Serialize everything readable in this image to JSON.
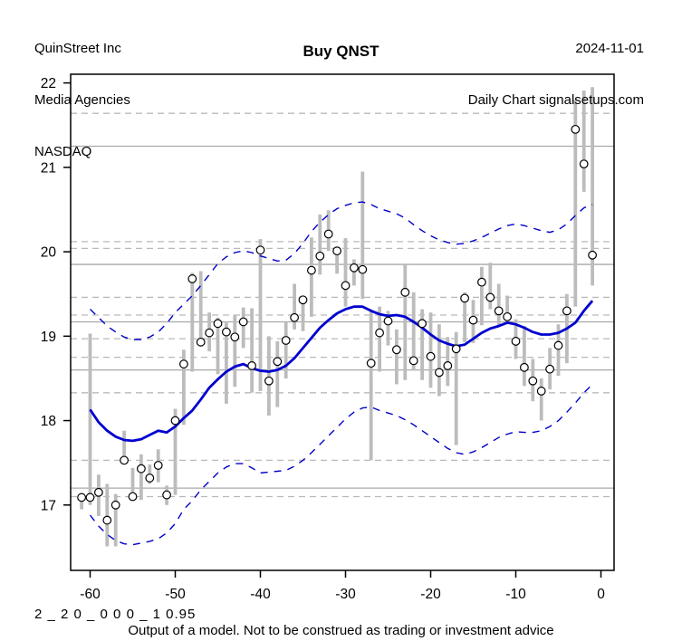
{
  "header": {
    "company": "QuinStreet Inc",
    "industry": "Media Agencies",
    "exchange": "NASDAQ",
    "date": "2024-11-01",
    "source": "Daily Chart signalsetups.com"
  },
  "title": "Buy QNST",
  "footer": {
    "params": "2 _ 2 0 _ 0 0 0 _ 1 0.95",
    "disclaimer": "Output of a model. Not to be construed as trading or investment advice"
  },
  "chart_data": {
    "type": "bar",
    "subtype": "daily price range bars with close markers, moving average and envelope bands",
    "title": "Buy QNST",
    "xlabel": "",
    "ylabel": "",
    "x_ticks": [
      -60,
      -50,
      -40,
      -30,
      -20,
      -10,
      0
    ],
    "y_ticks": [
      17,
      18,
      19,
      20,
      21,
      22
    ],
    "xlim": [
      -62.3,
      1.5
    ],
    "ylim": [
      16.23,
      22.1
    ],
    "grid": "horizontal support/resistance lines",
    "levels_solid": [
      21.25,
      19.85,
      19.17,
      18.6,
      17.2
    ],
    "levels_dashed": [
      21.64,
      20.12,
      20.04,
      19.46,
      19.25,
      18.97,
      18.75,
      18.33,
      17.53,
      17.1
    ],
    "days": [
      -61,
      -60,
      -59,
      -58,
      -57,
      -56,
      -55,
      -54,
      -53,
      -52,
      -51,
      -50,
      -49,
      -48,
      -47,
      -46,
      -45,
      -44,
      -43,
      -42,
      -41,
      -40,
      -39,
      -38,
      -37,
      -36,
      -35,
      -34,
      -33,
      -32,
      -31,
      -30,
      -29,
      -28,
      -27,
      -26,
      -25,
      -24,
      -23,
      -22,
      -21,
      -20,
      -19,
      -18,
      -17,
      -16,
      -15,
      -14,
      -13,
      -12,
      -11,
      -10,
      -9,
      -8,
      -7,
      -6,
      -5,
      -4,
      -3,
      -2,
      -1
    ],
    "high": [
      17.13,
      19.03,
      17.36,
      17.25,
      17.13,
      17.88,
      17.44,
      17.6,
      17.48,
      17.66,
      17.23,
      18.14,
      18.84,
      19.75,
      19.77,
      19.28,
      19.22,
      19.17,
      19.25,
      19.34,
      19.33,
      20.15,
      19.0,
      18.94,
      19.17,
      19.62,
      19.48,
      20.17,
      20.44,
      20.49,
      20.05,
      20.16,
      19.91,
      20.95,
      19.3,
      19.35,
      19.3,
      19.08,
      19.86,
      19.52,
      19.32,
      19.28,
      19.14,
      18.99,
      19.05,
      19.52,
      19.43,
      19.82,
      19.87,
      19.62,
      19.48,
      19.2,
      19.12,
      18.73,
      18.5,
      18.86,
      19.14,
      19.5,
      21.8,
      21.91,
      21.95
    ],
    "low": [
      16.95,
      17.0,
      16.87,
      16.51,
      16.51,
      17.5,
      17.05,
      17.06,
      17.25,
      17.27,
      17.0,
      17.12,
      17.95,
      18.58,
      18.9,
      18.82,
      18.55,
      18.2,
      18.4,
      18.86,
      18.33,
      18.35,
      18.06,
      18.16,
      18.5,
      19.08,
      19.06,
      19.23,
      19.73,
      20.01,
      19.74,
      19.35,
      19.6,
      19.44,
      17.53,
      18.58,
      18.89,
      18.43,
      18.48,
      18.59,
      18.48,
      18.39,
      18.29,
      18.41,
      17.71,
      18.93,
      18.92,
      19.13,
      19.32,
      19.11,
      19.21,
      18.73,
      18.41,
      18.23,
      18.0,
      18.37,
      18.53,
      18.68,
      19.35,
      20.71,
      19.6
    ],
    "close": [
      17.09,
      17.09,
      17.15,
      16.82,
      17.0,
      17.53,
      17.1,
      17.43,
      17.32,
      17.47,
      17.12,
      18.0,
      18.67,
      19.68,
      18.93,
      19.04,
      19.15,
      19.05,
      18.99,
      19.17,
      18.65,
      20.02,
      18.47,
      18.7,
      18.95,
      19.22,
      19.43,
      19.78,
      19.95,
      20.21,
      20.01,
      19.6,
      19.81,
      19.79,
      18.68,
      19.04,
      19.18,
      18.84,
      19.52,
      18.71,
      19.15,
      18.76,
      18.57,
      18.65,
      18.85,
      19.45,
      19.19,
      19.64,
      19.46,
      19.3,
      19.23,
      18.94,
      18.63,
      18.47,
      18.35,
      18.61,
      18.89,
      19.3,
      21.45,
      21.04,
      19.96
    ],
    "ma_days": [
      -60,
      -59,
      -58,
      -57,
      -56,
      -55,
      -54,
      -53,
      -52,
      -51,
      -50,
      -49,
      -48,
      -47,
      -46,
      -45,
      -44,
      -43,
      -42,
      -41,
      -40,
      -39,
      -38,
      -37,
      -36,
      -35,
      -34,
      -33,
      -32,
      -31,
      -30,
      -29,
      -28,
      -27,
      -26,
      -25,
      -24,
      -23,
      -22,
      -21,
      -20,
      -19,
      -18,
      -17,
      -16,
      -15,
      -14,
      -13,
      -12,
      -11,
      -10,
      -9,
      -8,
      -7,
      -6,
      -5,
      -4,
      -3,
      -2,
      -1
    ],
    "moving_average": [
      18.13,
      17.98,
      17.88,
      17.81,
      17.77,
      17.76,
      17.78,
      17.83,
      17.88,
      17.86,
      17.93,
      18.03,
      18.12,
      18.25,
      18.39,
      18.49,
      18.58,
      18.64,
      18.67,
      18.62,
      18.59,
      18.58,
      18.6,
      18.65,
      18.74,
      18.86,
      18.98,
      19.1,
      19.19,
      19.27,
      19.32,
      19.35,
      19.35,
      19.3,
      19.26,
      19.24,
      19.25,
      19.23,
      19.17,
      19.1,
      19.02,
      18.95,
      18.91,
      18.88,
      18.9,
      18.97,
      19.04,
      19.09,
      19.12,
      19.16,
      19.14,
      19.1,
      19.05,
      19.02,
      19.02,
      19.04,
      19.09,
      19.16,
      19.3,
      19.42
    ],
    "upper_band": [
      19.32,
      19.22,
      19.12,
      19.05,
      18.99,
      18.96,
      18.96,
      18.99,
      19.05,
      19.15,
      19.28,
      19.38,
      19.48,
      19.6,
      19.73,
      19.86,
      19.94,
      19.99,
      20.01,
      19.99,
      19.95,
      19.92,
      19.89,
      19.9,
      19.98,
      20.1,
      20.24,
      20.35,
      20.44,
      20.51,
      20.55,
      20.58,
      20.59,
      20.56,
      20.51,
      20.48,
      20.45,
      20.4,
      20.32,
      20.25,
      20.19,
      20.14,
      20.11,
      20.09,
      20.1,
      20.13,
      20.17,
      20.22,
      20.27,
      20.31,
      20.33,
      20.31,
      20.28,
      20.25,
      20.23,
      20.26,
      20.33,
      20.43,
      20.52,
      20.56
    ],
    "lower_band": [
      16.88,
      16.75,
      16.65,
      16.58,
      16.54,
      16.53,
      16.55,
      16.57,
      16.6,
      16.67,
      16.78,
      16.95,
      17.05,
      17.18,
      17.28,
      17.38,
      17.45,
      17.49,
      17.49,
      17.44,
      17.38,
      17.39,
      17.4,
      17.41,
      17.46,
      17.53,
      17.62,
      17.72,
      17.82,
      17.92,
      18.02,
      18.1,
      18.15,
      18.16,
      18.12,
      18.09,
      18.06,
      18.01,
      17.95,
      17.88,
      17.81,
      17.74,
      17.67,
      17.62,
      17.6,
      17.63,
      17.68,
      17.74,
      17.8,
      17.84,
      17.87,
      17.86,
      17.86,
      17.88,
      17.93,
      18.0,
      18.1,
      18.21,
      18.33,
      18.43
    ],
    "legend_position": "none",
    "colors": {
      "bar": "#bcbcbc",
      "close_marker_stroke": "#000000",
      "close_marker_fill": "#ffffff",
      "moving_average": "#0000d0",
      "bands": "#0000c8",
      "level_solid": "#a8a8a8",
      "level_dashed": "#b9b9b9",
      "frame": "#000000",
      "background": "#ffffff"
    }
  }
}
